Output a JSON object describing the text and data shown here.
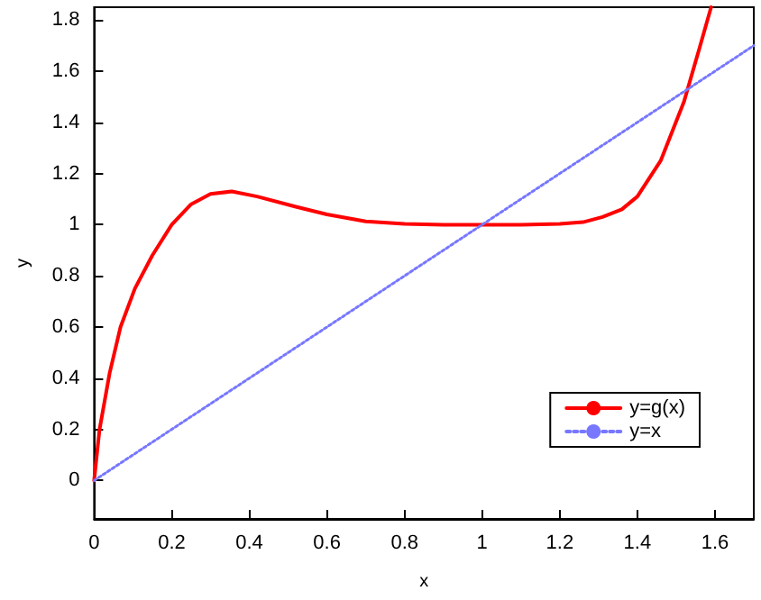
{
  "chart_data": {
    "type": "line",
    "xlabel": "x",
    "ylabel": "y",
    "xlim": [
      0,
      1.7
    ],
    "ylim": [
      -0.15,
      1.85
    ],
    "xticks": [
      0,
      0.2,
      0.4,
      0.6,
      0.8,
      1,
      1.2,
      1.4,
      1.6
    ],
    "yticks": [
      0,
      0.2,
      0.4,
      0.6,
      0.8,
      1,
      1.2,
      1.4,
      1.6,
      1.8
    ],
    "grid": false,
    "legend": "bottom right",
    "marker": "none",
    "series": [
      {
        "name": "y=g(x)",
        "color": "#ff0000",
        "line_style": "solid",
        "x": [
          0,
          0.014,
          0.04,
          0.068,
          0.105,
          0.15,
          0.2,
          0.25,
          0.3,
          0.355,
          0.42,
          0.52,
          0.6,
          0.7,
          0.8,
          0.9,
          1,
          1.1,
          1.2,
          1.26,
          1.31,
          1.36,
          1.4,
          1.46,
          1.52,
          1.56,
          1.59
        ],
        "values": [
          0,
          0.2,
          0.42,
          0.6,
          0.75,
          0.88,
          1.0,
          1.08,
          1.12,
          1.13,
          1.11,
          1.07,
          1.04,
          1.013,
          1.003,
          1.0,
          1.0,
          1.0,
          1.003,
          1.01,
          1.03,
          1.06,
          1.11,
          1.25,
          1.48,
          1.69,
          1.85
        ]
      },
      {
        "name": "y=x",
        "color": "#7777ff",
        "line_style": "dotted",
        "x": [
          0,
          1.7
        ],
        "values": [
          0,
          1.7
        ]
      }
    ]
  }
}
